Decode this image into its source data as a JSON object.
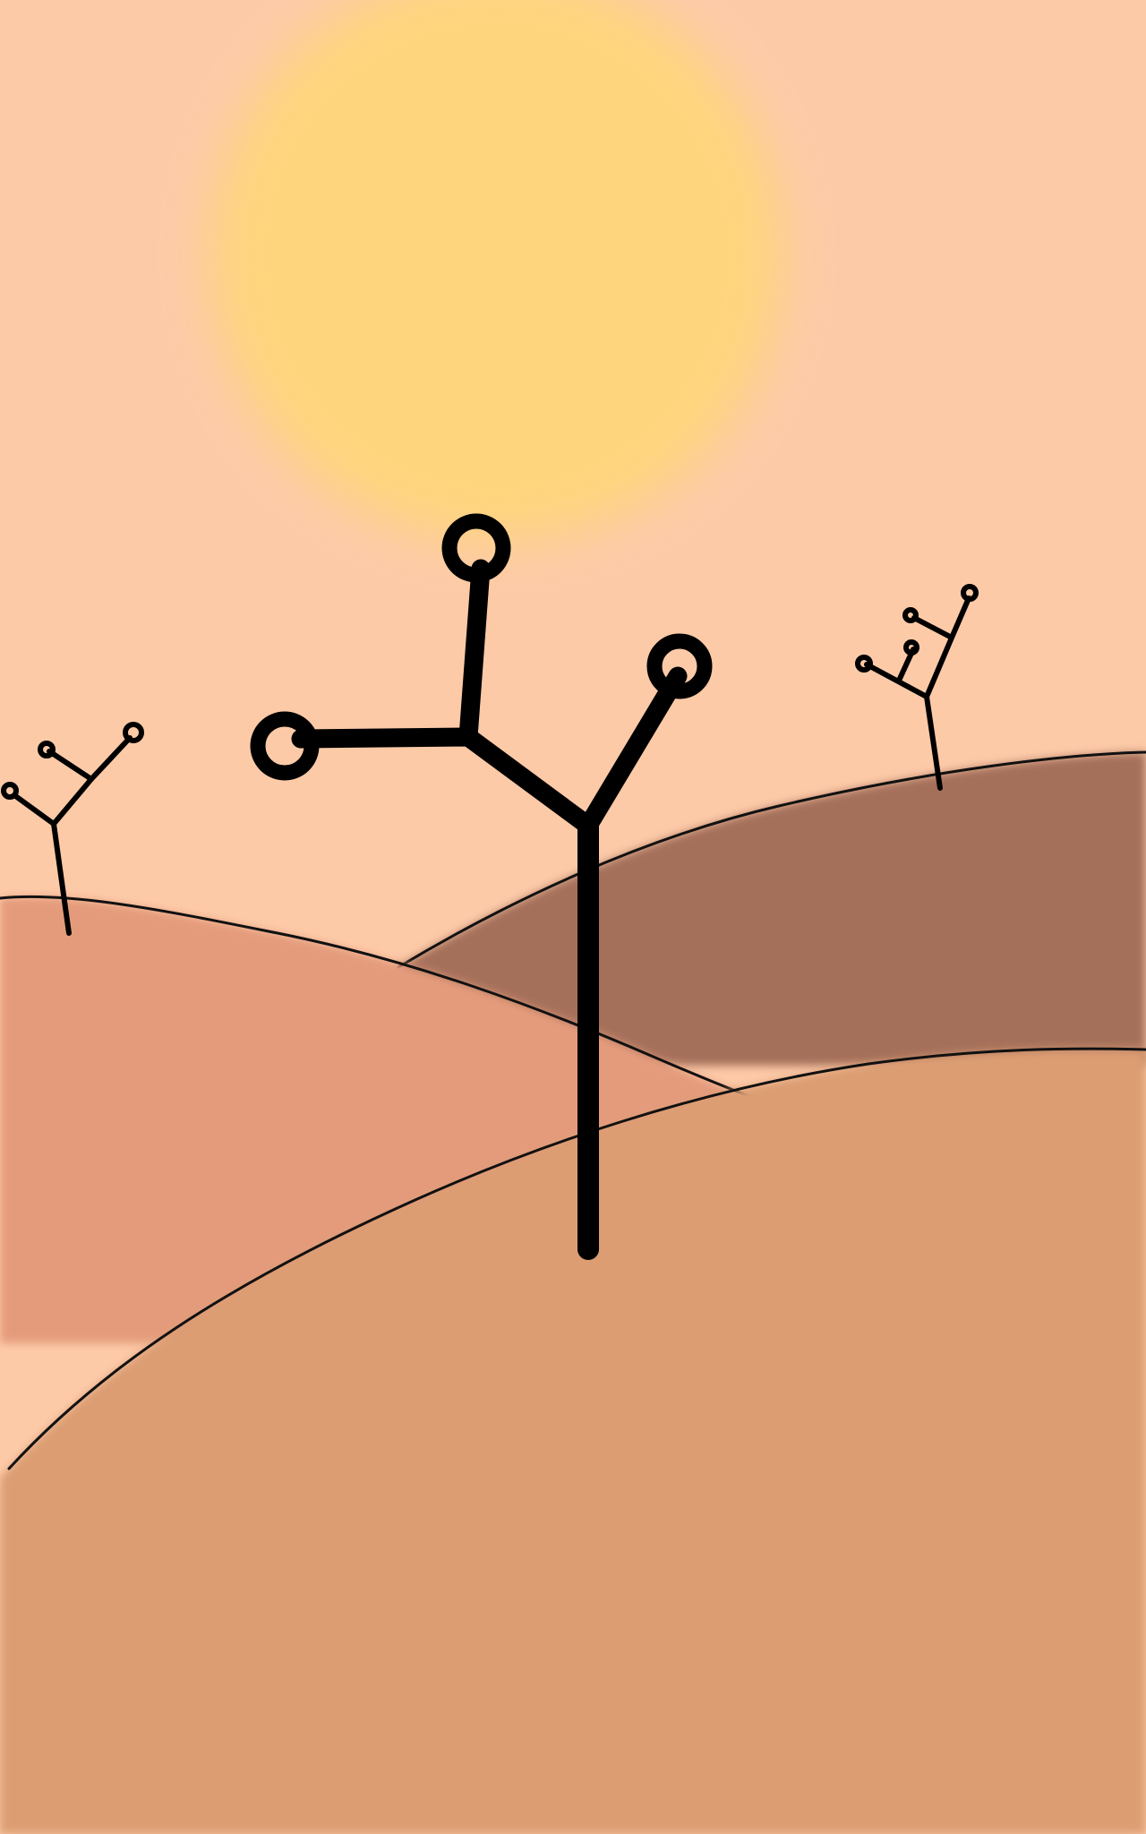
{
  "scene": {
    "colors": {
      "sky": "#fdcaa8",
      "sun": "#ffd57b",
      "far_dune": "#a5705a",
      "middle_dune": "#e49b7b",
      "near_dune": "#dc9d72",
      "outline": "#111111"
    },
    "elements": {
      "sun": "blurred-yellow-sun",
      "dunes": [
        "far-right-dune",
        "middle-left-dune",
        "foreground-dune"
      ],
      "trees": [
        "small-left-tree",
        "large-center-tree",
        "small-right-tree"
      ]
    }
  }
}
